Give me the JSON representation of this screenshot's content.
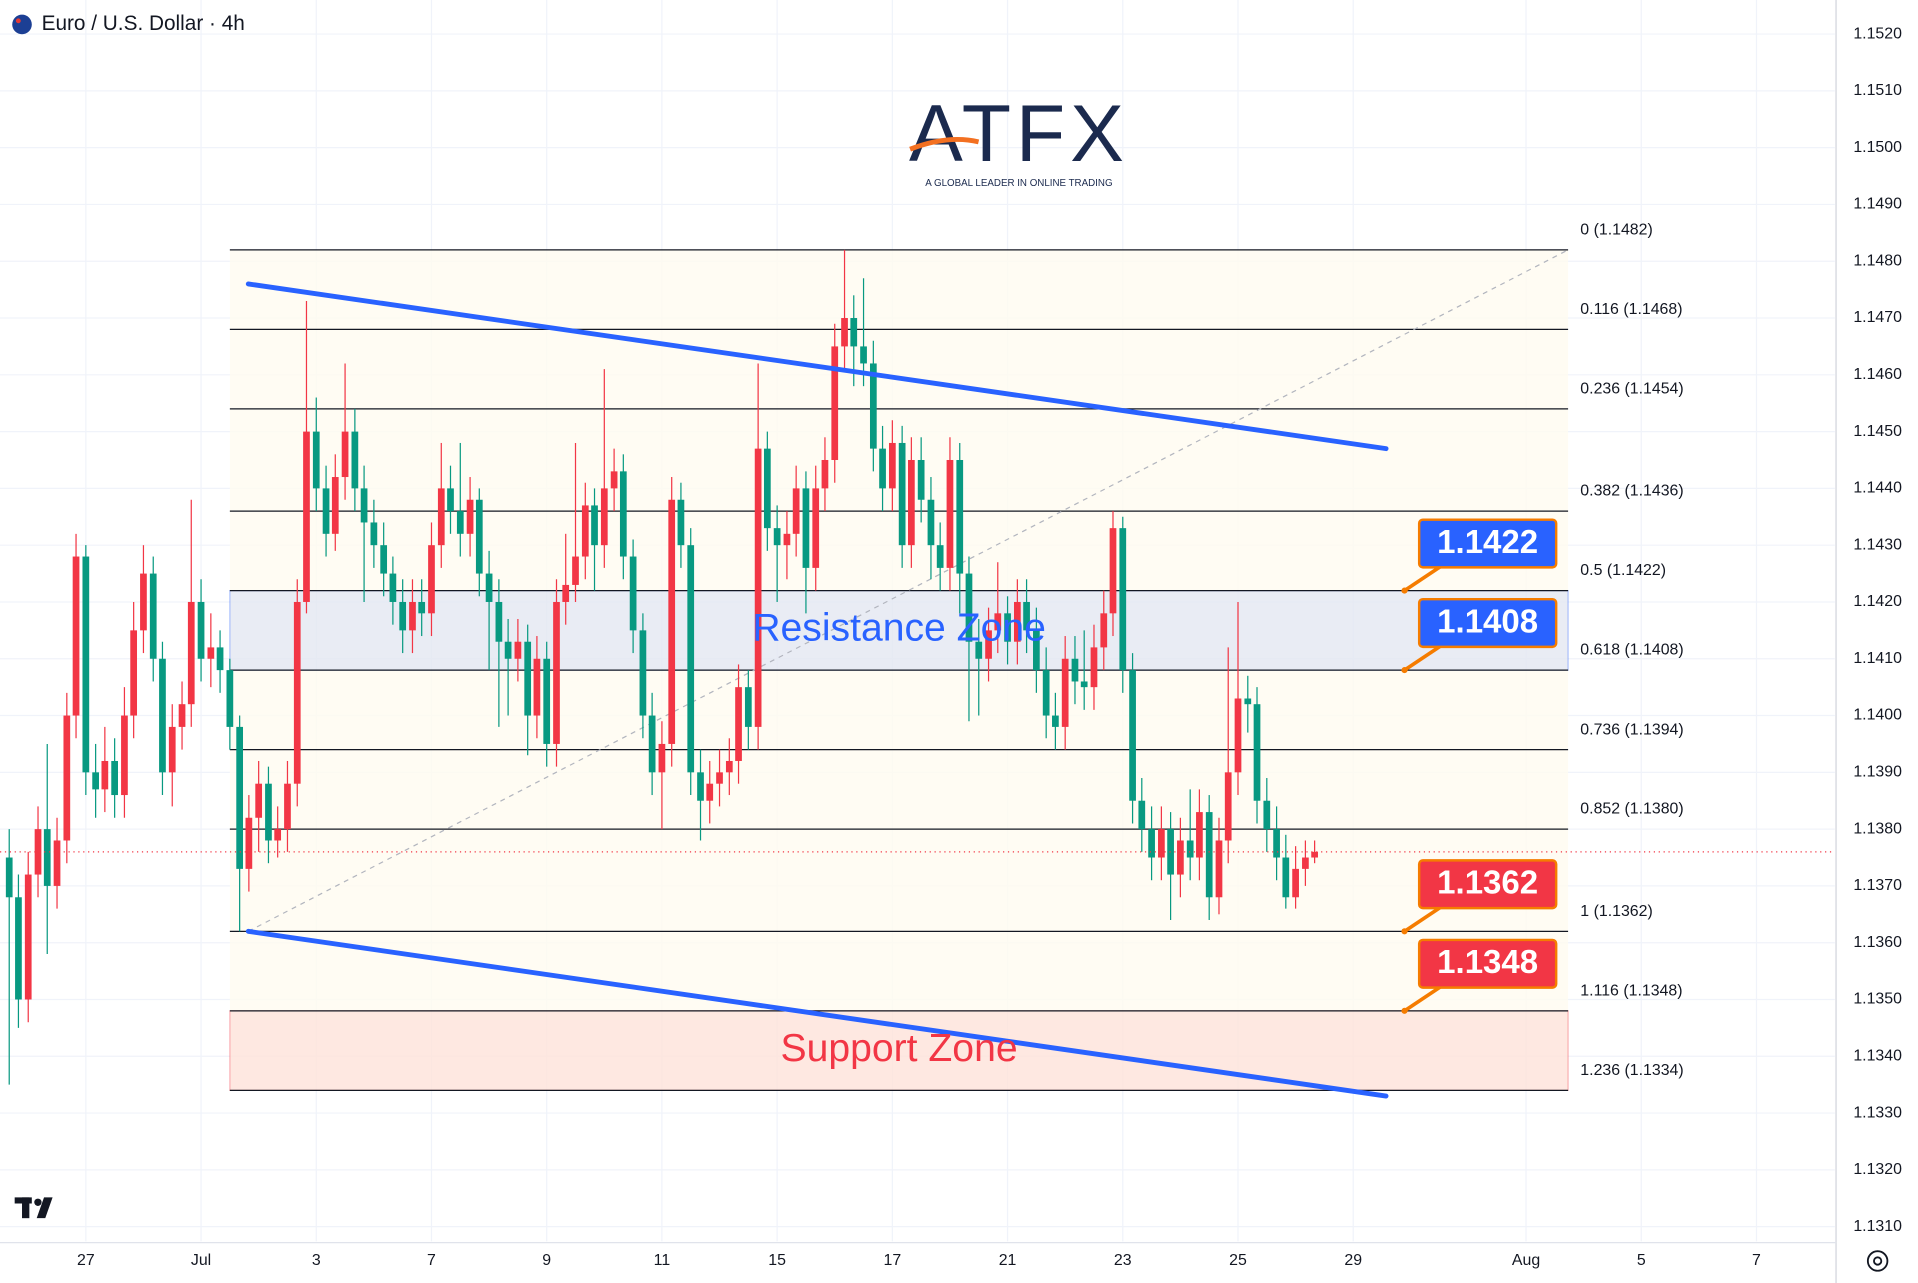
{
  "header": {
    "title": "Euro / U.S. Dollar · 4h"
  },
  "logo": {
    "name": "ATFX",
    "tagline": "A GLOBAL LEADER IN ONLINE TRADING"
  },
  "chart_data": {
    "type": "candlestick",
    "up_color": "#f23645",
    "down_color": "#089981",
    "grid": true,
    "xlim": [
      -1.49,
      30.36
    ],
    "ylim": [
      1.13074,
      1.1526
    ],
    "xticks": [
      {
        "value": 0,
        "label": "27"
      },
      {
        "value": 2,
        "label": "Jul"
      },
      {
        "value": 4,
        "label": "3"
      },
      {
        "value": 6,
        "label": "7"
      },
      {
        "value": 8,
        "label": "9"
      },
      {
        "value": 10,
        "label": "11"
      },
      {
        "value": 12,
        "label": "15"
      },
      {
        "value": 14,
        "label": "17"
      },
      {
        "value": 16,
        "label": "21"
      },
      {
        "value": 18,
        "label": "23"
      },
      {
        "value": 20,
        "label": "25"
      },
      {
        "value": 22,
        "label": "29"
      },
      {
        "value": 25,
        "label": "Aug"
      },
      {
        "value": 27,
        "label": "5"
      },
      {
        "value": 29,
        "label": "7"
      }
    ],
    "yticks": [
      {
        "value": 1.152,
        "label": "1.1520"
      },
      {
        "value": 1.151,
        "label": "1.1510"
      },
      {
        "value": 1.15,
        "label": "1.1500"
      },
      {
        "value": 1.149,
        "label": "1.1490"
      },
      {
        "value": 1.148,
        "label": "1.1480"
      },
      {
        "value": 1.147,
        "label": "1.1470"
      },
      {
        "value": 1.146,
        "label": "1.1460"
      },
      {
        "value": 1.145,
        "label": "1.1450"
      },
      {
        "value": 1.144,
        "label": "1.1440"
      },
      {
        "value": 1.143,
        "label": "1.1430"
      },
      {
        "value": 1.142,
        "label": "1.1420"
      },
      {
        "value": 1.141,
        "label": "1.1410"
      },
      {
        "value": 1.14,
        "label": "1.1400"
      },
      {
        "value": 1.139,
        "label": "1.1390"
      },
      {
        "value": 1.138,
        "label": "1.1380"
      },
      {
        "value": 1.137,
        "label": "1.1370"
      },
      {
        "value": 1.136,
        "label": "1.1360"
      },
      {
        "value": 1.135,
        "label": "1.1350"
      },
      {
        "value": 1.134,
        "label": "1.1340"
      },
      {
        "value": 1.133,
        "label": "1.1330"
      },
      {
        "value": 1.132,
        "label": "1.1320"
      },
      {
        "value": 1.131,
        "label": "1.1310"
      }
    ],
    "x": [
      -1.33,
      -1.17,
      -1,
      -0.83,
      -0.67,
      -0.5,
      -0.33,
      -0.17,
      0,
      0.17,
      0.33,
      0.5,
      0.67,
      0.83,
      1,
      1.17,
      1.33,
      1.5,
      1.67,
      1.83,
      2,
      2.17,
      2.33,
      2.5,
      2.67,
      2.83,
      3,
      3.17,
      3.33,
      3.5,
      3.67,
      3.83,
      4,
      4.17,
      4.33,
      4.5,
      4.67,
      4.83,
      5,
      5.17,
      5.33,
      5.5,
      5.67,
      5.83,
      6,
      6.17,
      6.33,
      6.5,
      6.67,
      6.83,
      7,
      7.17,
      7.33,
      7.5,
      7.67,
      7.83,
      8,
      8.17,
      8.33,
      8.5,
      8.67,
      8.83,
      9,
      9.17,
      9.33,
      9.5,
      9.67,
      9.83,
      10,
      10.17,
      10.33,
      10.5,
      10.67,
      10.83,
      11,
      11.17,
      11.33,
      11.5,
      11.67,
      11.83,
      12,
      12.17,
      12.33,
      12.5,
      12.67,
      12.83,
      13,
      13.17,
      13.33,
      13.5,
      13.67,
      13.83,
      14,
      14.17,
      14.33,
      14.5,
      14.67,
      14.83,
      15,
      15.17,
      15.33,
      15.5,
      15.67,
      15.83,
      16,
      16.17,
      16.33,
      16.5,
      16.67,
      16.83,
      17,
      17.17,
      17.33,
      17.5,
      17.67,
      17.83,
      18,
      18.17,
      18.33,
      18.5,
      18.67,
      18.83,
      19,
      19.17,
      19.33,
      19.5,
      19.67,
      19.83,
      20,
      20.17,
      20.33,
      20.5,
      20.67,
      20.83,
      21,
      21.17,
      21.33
    ],
    "ohlc": [
      [
        1.1375,
        1.138,
        1.1335,
        1.1368
      ],
      [
        1.1368,
        1.1372,
        1.1345,
        1.135
      ],
      [
        1.135,
        1.1376,
        1.1346,
        1.1372
      ],
      [
        1.1372,
        1.1384,
        1.1368,
        1.138
      ],
      [
        1.138,
        1.1395,
        1.1358,
        1.137
      ],
      [
        1.137,
        1.1382,
        1.1366,
        1.1378
      ],
      [
        1.1378,
        1.1404,
        1.1374,
        1.14
      ],
      [
        1.14,
        1.1432,
        1.1396,
        1.1428
      ],
      [
        1.1428,
        1.143,
        1.1386,
        1.139
      ],
      [
        1.139,
        1.1395,
        1.1382,
        1.1387
      ],
      [
        1.1387,
        1.1398,
        1.1383,
        1.1392
      ],
      [
        1.1392,
        1.1396,
        1.1382,
        1.1386
      ],
      [
        1.1386,
        1.1405,
        1.1382,
        1.14
      ],
      [
        1.14,
        1.142,
        1.1396,
        1.1415
      ],
      [
        1.1415,
        1.143,
        1.1411,
        1.1425
      ],
      [
        1.1425,
        1.1428,
        1.1406,
        1.141
      ],
      [
        1.141,
        1.1413,
        1.1386,
        1.139
      ],
      [
        1.139,
        1.1402,
        1.1384,
        1.1398
      ],
      [
        1.1398,
        1.1406,
        1.1394,
        1.1402
      ],
      [
        1.1402,
        1.1438,
        1.1398,
        1.142
      ],
      [
        1.142,
        1.1424,
        1.1406,
        1.141
      ],
      [
        1.141,
        1.1418,
        1.1405,
        1.1412
      ],
      [
        1.1412,
        1.1415,
        1.1404,
        1.1408
      ],
      [
        1.1408,
        1.141,
        1.1394,
        1.1398
      ],
      [
        1.1398,
        1.14,
        1.1362,
        1.1373
      ],
      [
        1.1373,
        1.1386,
        1.1369,
        1.1382
      ],
      [
        1.1382,
        1.1392,
        1.1376,
        1.1388
      ],
      [
        1.1388,
        1.1391,
        1.1374,
        1.1378
      ],
      [
        1.1378,
        1.1384,
        1.1375,
        1.138
      ],
      [
        1.138,
        1.1392,
        1.1376,
        1.1388
      ],
      [
        1.1388,
        1.1424,
        1.1384,
        1.142
      ],
      [
        1.142,
        1.1473,
        1.1418,
        1.145
      ],
      [
        1.145,
        1.1456,
        1.1436,
        1.144
      ],
      [
        1.144,
        1.1444,
        1.1428,
        1.1432
      ],
      [
        1.1432,
        1.1446,
        1.1429,
        1.1442
      ],
      [
        1.1442,
        1.1462,
        1.1438,
        1.145
      ],
      [
        1.145,
        1.1454,
        1.1436,
        1.144
      ],
      [
        1.144,
        1.1444,
        1.142,
        1.1434
      ],
      [
        1.1434,
        1.1438,
        1.1426,
        1.143
      ],
      [
        1.143,
        1.1434,
        1.1421,
        1.1425
      ],
      [
        1.1425,
        1.1428,
        1.1416,
        1.142
      ],
      [
        1.142,
        1.1424,
        1.1411,
        1.1415
      ],
      [
        1.1415,
        1.1424,
        1.1411,
        1.142
      ],
      [
        1.142,
        1.1424,
        1.1414,
        1.1418
      ],
      [
        1.1418,
        1.1434,
        1.1414,
        1.143
      ],
      [
        1.143,
        1.1448,
        1.1426,
        1.144
      ],
      [
        1.144,
        1.1444,
        1.1432,
        1.1436
      ],
      [
        1.1436,
        1.1448,
        1.1428,
        1.1432
      ],
      [
        1.1432,
        1.1442,
        1.1428,
        1.1438
      ],
      [
        1.1438,
        1.144,
        1.1421,
        1.1425
      ],
      [
        1.1425,
        1.1429,
        1.1408,
        1.142
      ],
      [
        1.142,
        1.1424,
        1.1398,
        1.1413
      ],
      [
        1.1413,
        1.1417,
        1.14,
        1.141
      ],
      [
        1.141,
        1.1417,
        1.1406,
        1.1413
      ],
      [
        1.1413,
        1.1416,
        1.1393,
        1.14
      ],
      [
        1.14,
        1.1414,
        1.1396,
        1.141
      ],
      [
        1.141,
        1.1413,
        1.1391,
        1.1395
      ],
      [
        1.1395,
        1.1424,
        1.1391,
        1.142
      ],
      [
        1.142,
        1.1432,
        1.1416,
        1.1423
      ],
      [
        1.1423,
        1.1448,
        1.142,
        1.1428
      ],
      [
        1.1428,
        1.1441,
        1.1424,
        1.1437
      ],
      [
        1.1437,
        1.144,
        1.1422,
        1.143
      ],
      [
        1.143,
        1.1461,
        1.1426,
        1.144
      ],
      [
        1.144,
        1.1447,
        1.1436,
        1.1443
      ],
      [
        1.1443,
        1.1446,
        1.1424,
        1.1428
      ],
      [
        1.1428,
        1.1431,
        1.1411,
        1.1415
      ],
      [
        1.1415,
        1.1418,
        1.1396,
        1.14
      ],
      [
        1.14,
        1.1404,
        1.1386,
        1.139
      ],
      [
        1.139,
        1.1399,
        1.138,
        1.1395
      ],
      [
        1.1395,
        1.1442,
        1.1391,
        1.1438
      ],
      [
        1.1438,
        1.1441,
        1.1426,
        1.143
      ],
      [
        1.143,
        1.1433,
        1.1386,
        1.139
      ],
      [
        1.139,
        1.1394,
        1.1378,
        1.1385
      ],
      [
        1.1385,
        1.1392,
        1.1381,
        1.1388
      ],
      [
        1.1388,
        1.1394,
        1.1384,
        1.139
      ],
      [
        1.139,
        1.1396,
        1.1386,
        1.1392
      ],
      [
        1.1392,
        1.1409,
        1.1388,
        1.1405
      ],
      [
        1.1405,
        1.1408,
        1.1394,
        1.1398
      ],
      [
        1.1398,
        1.1462,
        1.1394,
        1.1447
      ],
      [
        1.1447,
        1.145,
        1.1429,
        1.1433
      ],
      [
        1.1433,
        1.1437,
        1.142,
        1.143
      ],
      [
        1.143,
        1.1436,
        1.1424,
        1.1432
      ],
      [
        1.1432,
        1.1444,
        1.1428,
        1.144
      ],
      [
        1.144,
        1.1443,
        1.1418,
        1.1426
      ],
      [
        1.1426,
        1.1444,
        1.1422,
        1.144
      ],
      [
        1.144,
        1.1449,
        1.1436,
        1.1445
      ],
      [
        1.1445,
        1.1469,
        1.1441,
        1.1465
      ],
      [
        1.1465,
        1.1482,
        1.1461,
        1.147
      ],
      [
        1.147,
        1.1474,
        1.1458,
        1.1465
      ],
      [
        1.1465,
        1.1477,
        1.1458,
        1.1462
      ],
      [
        1.1462,
        1.1466,
        1.1443,
        1.1447
      ],
      [
        1.1447,
        1.1451,
        1.1436,
        1.144
      ],
      [
        1.144,
        1.1452,
        1.1436,
        1.1448
      ],
      [
        1.1448,
        1.1451,
        1.1426,
        1.143
      ],
      [
        1.143,
        1.1449,
        1.1426,
        1.1445
      ],
      [
        1.1445,
        1.1449,
        1.1434,
        1.1438
      ],
      [
        1.1438,
        1.1442,
        1.1424,
        1.143
      ],
      [
        1.143,
        1.1434,
        1.1422,
        1.1426
      ],
      [
        1.1426,
        1.1449,
        1.1422,
        1.1445
      ],
      [
        1.1445,
        1.1448,
        1.1418,
        1.1425
      ],
      [
        1.1425,
        1.1428,
        1.1399,
        1.1413
      ],
      [
        1.1413,
        1.1417,
        1.14,
        1.141
      ],
      [
        1.141,
        1.1419,
        1.1406,
        1.1415
      ],
      [
        1.1415,
        1.1427,
        1.1411,
        1.1418
      ],
      [
        1.1418,
        1.1421,
        1.1409,
        1.1413
      ],
      [
        1.1413,
        1.1424,
        1.1409,
        1.142
      ],
      [
        1.142,
        1.1424,
        1.1411,
        1.1415
      ],
      [
        1.1415,
        1.1419,
        1.1404,
        1.1408
      ],
      [
        1.1408,
        1.1412,
        1.1396,
        1.14
      ],
      [
        1.14,
        1.1404,
        1.1394,
        1.1398
      ],
      [
        1.1398,
        1.1414,
        1.1394,
        1.141
      ],
      [
        1.141,
        1.1414,
        1.1402,
        1.1406
      ],
      [
        1.1406,
        1.1415,
        1.1401,
        1.1405
      ],
      [
        1.1405,
        1.1416,
        1.1401,
        1.1412
      ],
      [
        1.1412,
        1.1422,
        1.1408,
        1.1418
      ],
      [
        1.1418,
        1.1436,
        1.1414,
        1.1433
      ],
      [
        1.1433,
        1.1435,
        1.1404,
        1.1408
      ],
      [
        1.1408,
        1.1411,
        1.1381,
        1.1385
      ],
      [
        1.1385,
        1.1389,
        1.1376,
        1.138
      ],
      [
        1.138,
        1.1384,
        1.1371,
        1.1375
      ],
      [
        1.1375,
        1.1384,
        1.1371,
        1.138
      ],
      [
        1.138,
        1.1383,
        1.1364,
        1.1372
      ],
      [
        1.1372,
        1.1382,
        1.1368,
        1.1378
      ],
      [
        1.1378,
        1.1387,
        1.1371,
        1.1375
      ],
      [
        1.1375,
        1.1387,
        1.1371,
        1.1383
      ],
      [
        1.1383,
        1.1386,
        1.1364,
        1.1368
      ],
      [
        1.1368,
        1.1382,
        1.1365,
        1.1378
      ],
      [
        1.1378,
        1.1412,
        1.1374,
        1.139
      ],
      [
        1.139,
        1.142,
        1.1386,
        1.1403
      ],
      [
        1.1403,
        1.1407,
        1.1397,
        1.1402
      ],
      [
        1.1402,
        1.1405,
        1.1381,
        1.1385
      ],
      [
        1.1385,
        1.1389,
        1.1376,
        1.138
      ],
      [
        1.138,
        1.1384,
        1.1371,
        1.1375
      ],
      [
        1.1375,
        1.1379,
        1.1366,
        1.1368
      ],
      [
        1.1368,
        1.1377,
        1.1366,
        1.1373
      ],
      [
        1.1373,
        1.1378,
        1.137,
        1.1375
      ],
      [
        1.1375,
        1.1378,
        1.1374,
        1.1376
      ]
    ],
    "fib": {
      "x": [
        2.5,
        25.73
      ],
      "color": "#131722",
      "levels": [
        {
          "label": "0 (1.1482)",
          "value": 1.1482
        },
        {
          "label": "0.116 (1.1468)",
          "value": 1.1468
        },
        {
          "label": "0.236 (1.1454)",
          "value": 1.1454
        },
        {
          "label": "0.382 (1.1436)",
          "value": 1.1436
        },
        {
          "label": "0.5 (1.1422)",
          "value": 1.1422
        },
        {
          "label": "0.618 (1.1408)",
          "value": 1.1408
        },
        {
          "label": "0.736 (1.1394)",
          "value": 1.1394
        },
        {
          "label": "0.852 (1.1380)",
          "value": 1.138
        },
        {
          "label": "1 (1.1362)",
          "value": 1.1362
        },
        {
          "label": "1.116 (1.1348)",
          "value": 1.1348
        },
        {
          "label": "1.236 (1.1334)",
          "value": 1.1334
        }
      ]
    },
    "diagonal": {
      "x": [
        2.82,
        25.73
      ],
      "y": [
        1.1362,
        1.1482
      ]
    },
    "zones": [
      {
        "label": "Resistance Zone",
        "range": [
          1.1408,
          1.1422
        ],
        "color": "#2962ff"
      },
      {
        "label": "Support Zone",
        "range": [
          1.1334,
          1.1348
        ],
        "color": "#f23645"
      }
    ],
    "trendlines": [
      {
        "x": [
          2.82,
          22.57
        ],
        "y": [
          1.1476,
          1.1447
        ],
        "color": "#2962ff"
      },
      {
        "x": [
          2.82,
          22.57
        ],
        "y": [
          1.1362,
          1.1333
        ],
        "color": "#2962ff"
      }
    ],
    "tags": [
      {
        "label": "1.1422",
        "value": 1.1422,
        "x": 22.89,
        "color": "#2962ff"
      },
      {
        "label": "1.1408",
        "value": 1.1408,
        "x": 22.89,
        "color": "#2962ff"
      },
      {
        "label": "1.1362",
        "value": 1.1362,
        "x": 22.89,
        "color": "#f23645"
      },
      {
        "label": "1.1348",
        "value": 1.1348,
        "x": 22.89,
        "color": "#f23645"
      }
    ]
  }
}
